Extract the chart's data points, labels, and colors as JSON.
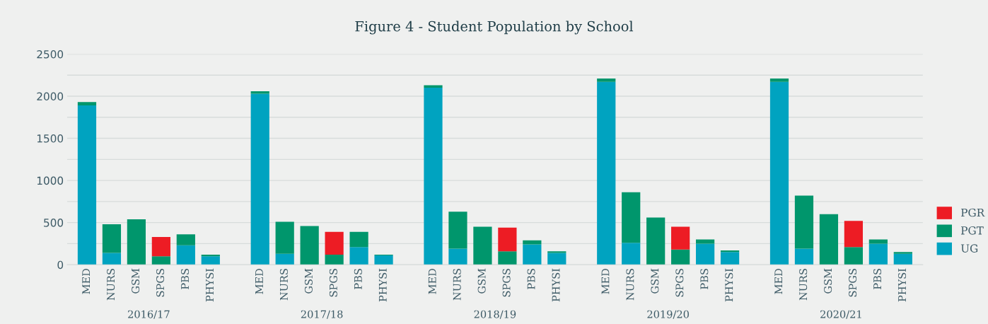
{
  "chart_data": {
    "type": "bar",
    "title": "Figure 4 - Student Population by School",
    "stacked": true,
    "legend": "right",
    "grid": "y",
    "categories": [
      "MED",
      "NURS",
      "GSM",
      "SPGS",
      "PBS",
      "PHYSI",
      "MED",
      "NURS",
      "GSM",
      "SPGS",
      "PBS",
      "PHYSI",
      "MED",
      "NURS",
      "GSM",
      "SPGS",
      "PBS",
      "PHYSI",
      "MED",
      "NURS",
      "GSM",
      "SPGS",
      "PBS",
      "PHYSI",
      "MED",
      "NURS",
      "GSM",
      "SPGS",
      "PBS",
      "PHYSI"
    ],
    "annotations": [
      "2016/17",
      "2017/18",
      "2018/19",
      "2019/20",
      "2020/21"
    ],
    "ylim": [
      0,
      2500
    ],
    "yticks": [
      0,
      {
        "value": 250,
        "label": null
      },
      500,
      {
        "value": 750,
        "label": null
      },
      1000,
      {
        "value": 1250,
        "label": null
      },
      1500,
      {
        "value": 1750,
        "label": null
      },
      2000,
      {
        "value": 2250,
        "label": null
      },
      2500
    ],
    "series": [
      {
        "name": "UG",
        "color": "#00a3c0",
        "values": [
          1890,
          140,
          0,
          0,
          230,
          100,
          2030,
          130,
          0,
          0,
          210,
          110,
          2100,
          190,
          0,
          0,
          240,
          140,
          2170,
          260,
          0,
          0,
          250,
          150,
          2170,
          190,
          0,
          0,
          250,
          130
        ]
      },
      {
        "name": "PGT",
        "color": "#00966c",
        "values": [
          40,
          340,
          540,
          100,
          130,
          20,
          30,
          380,
          460,
          120,
          180,
          10,
          30,
          440,
          450,
          160,
          50,
          20,
          40,
          600,
          560,
          180,
          50,
          20,
          40,
          630,
          600,
          210,
          50,
          20
        ]
      },
      {
        "name": "PGR",
        "color": "#ed1c24",
        "values": [
          0,
          0,
          0,
          230,
          0,
          0,
          0,
          0,
          0,
          270,
          0,
          0,
          0,
          0,
          0,
          280,
          0,
          0,
          0,
          0,
          0,
          270,
          0,
          0,
          0,
          0,
          0,
          310,
          0,
          0
        ]
      }
    ]
  }
}
